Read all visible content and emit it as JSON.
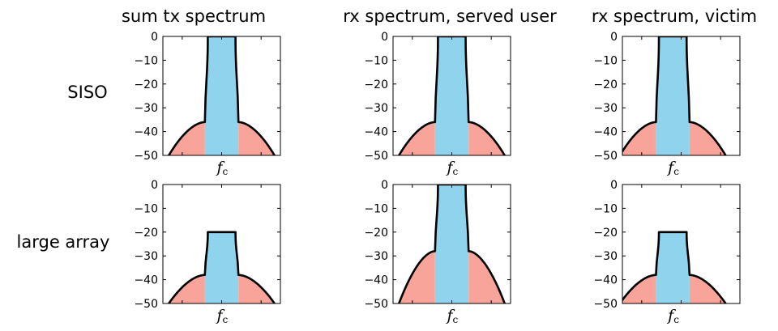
{
  "columns": [
    "sum tx spectrum",
    "rx spectrum, served user",
    "rx spectrum, victim"
  ],
  "rows": [
    "SISO",
    "large array"
  ],
  "colors": {
    "in_band": "#8fd3ec",
    "out_of_band": "#f9a49a",
    "outline": "#000000"
  },
  "chart_data": [
    {
      "type": "area",
      "row": "SISO",
      "column": "sum tx spectrum",
      "ylim": [
        -50,
        0
      ],
      "yticks": [
        0,
        -10,
        -20,
        -30,
        -40,
        -50
      ],
      "xtick": {
        "main": "f",
        "sub": "c"
      },
      "in_band_level": 0,
      "band_edge_level": -36,
      "edge_fall_level": -50,
      "band_center": 0
    },
    {
      "type": "area",
      "row": "SISO",
      "column": "rx spectrum, served user",
      "ylim": [
        -50,
        0
      ],
      "yticks": [
        0,
        -10,
        -20,
        -30,
        -40,
        -50
      ],
      "xtick": {
        "main": "f",
        "sub": "c"
      },
      "in_band_level": 0,
      "band_edge_level": -36,
      "edge_fall_level": -50,
      "band_center": 0
    },
    {
      "type": "area",
      "row": "SISO",
      "column": "rx spectrum, victim",
      "ylim": [
        -50,
        0
      ],
      "yticks": [
        0,
        -10,
        -20,
        -30,
        -40,
        -50
      ],
      "xtick": {
        "main": "f",
        "sub": "c"
      },
      "in_band_level": 0,
      "band_edge_level": -36,
      "edge_fall_level": -50,
      "band_center": -1
    },
    {
      "type": "area",
      "row": "large array",
      "column": "sum tx spectrum",
      "ylim": [
        -50,
        0
      ],
      "yticks": [
        0,
        -10,
        -20,
        -30,
        -40,
        -50
      ],
      "xtick": {
        "main": "f",
        "sub": "c"
      },
      "in_band_level": -20,
      "band_edge_level": -38,
      "edge_fall_level": -50,
      "band_center": 0
    },
    {
      "type": "area",
      "row": "large array",
      "column": "rx spectrum, served user",
      "ylim": [
        -50,
        0
      ],
      "yticks": [
        0,
        -10,
        -20,
        -30,
        -40,
        -50
      ],
      "xtick": {
        "main": "f",
        "sub": "c"
      },
      "in_band_level": 0,
      "band_edge_level": -28,
      "edge_fall_level": -50,
      "band_center": 0
    },
    {
      "type": "area",
      "row": "large array",
      "column": "rx spectrum, victim",
      "ylim": [
        -50,
        0
      ],
      "yticks": [
        0,
        -10,
        -20,
        -30,
        -40,
        -50
      ],
      "xtick": {
        "main": "f",
        "sub": "c"
      },
      "in_band_level": -20,
      "band_edge_level": -38,
      "edge_fall_level": -50,
      "band_center": -1
    }
  ]
}
